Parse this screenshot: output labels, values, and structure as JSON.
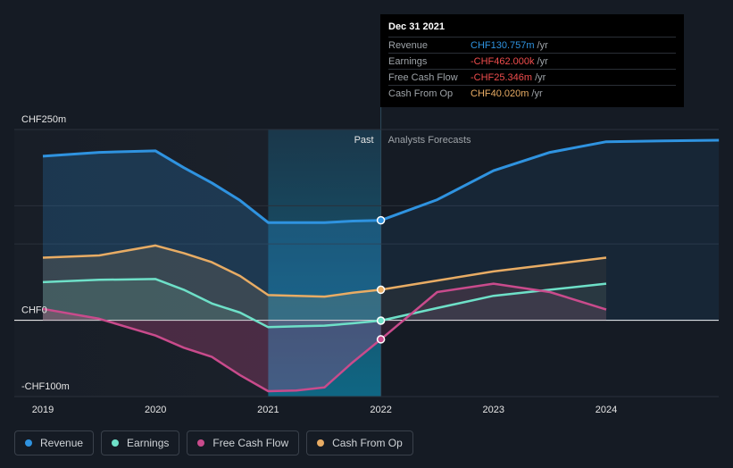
{
  "colors": {
    "background": "#151b24",
    "revenue": "#2f93e0",
    "earnings": "#6ee0c8",
    "free_cash_flow": "#c94b8c",
    "cash_from_op": "#e8ac64",
    "axis_text": "#e6e6e6",
    "section_text": "#9ea3a8"
  },
  "tooltip": {
    "date": "Dec 31 2021",
    "rows": [
      {
        "label": "Revenue",
        "value": "CHF130.757m",
        "unit": "/yr",
        "color": "#2f93e0"
      },
      {
        "label": "Earnings",
        "value": "-CHF462.000k",
        "unit": "/yr",
        "color": "#f04d4d"
      },
      {
        "label": "Free Cash Flow",
        "value": "-CHF25.346m",
        "unit": "/yr",
        "color": "#f04d4d"
      },
      {
        "label": "Cash From Op",
        "value": "CHF40.020m",
        "unit": "/yr",
        "color": "#e8ac64"
      }
    ]
  },
  "sections": {
    "past": "Past",
    "forecast": "Analysts Forecasts"
  },
  "legend": [
    {
      "label": "Revenue",
      "color": "#2f93e0"
    },
    {
      "label": "Earnings",
      "color": "#6ee0c8"
    },
    {
      "label": "Free Cash Flow",
      "color": "#c94b8c"
    },
    {
      "label": "Cash From Op",
      "color": "#e8ac64"
    }
  ],
  "chart_data": {
    "type": "line",
    "title": "",
    "xlabel": "",
    "ylabel": "",
    "unit": "CHF m",
    "xlim": [
      2019.0,
      2025.0
    ],
    "ylim": [
      -100,
      250
    ],
    "y_tick_labels": [
      {
        "value": 250,
        "label": "CHF250m"
      },
      {
        "value": 0,
        "label": "CHF0"
      },
      {
        "value": -100,
        "label": "-CHF100m"
      }
    ],
    "x_tick_labels": [
      {
        "value": 2019.0,
        "label": "2019"
      },
      {
        "value": 2020.0,
        "label": "2020"
      },
      {
        "value": 2021.0,
        "label": "2021"
      },
      {
        "value": 2022.0,
        "label": "2022"
      },
      {
        "value": 2023.0,
        "label": "2023"
      },
      {
        "value": 2024.0,
        "label": "2024"
      }
    ],
    "past_end": 2022.0,
    "highlight_start": 2021.0,
    "highlight_x": 2022.0,
    "series": [
      {
        "name": "Revenue",
        "key": "revenue",
        "past": [
          [
            2019.0,
            215
          ],
          [
            2019.5,
            220
          ],
          [
            2020.0,
            222
          ],
          [
            2020.25,
            200
          ],
          [
            2020.5,
            180
          ],
          [
            2020.75,
            157
          ],
          [
            2021.0,
            128
          ],
          [
            2021.25,
            128
          ],
          [
            2021.5,
            128
          ],
          [
            2021.75,
            130
          ],
          [
            2022.0,
            131
          ]
        ],
        "forecast": [
          [
            2022.0,
            131
          ],
          [
            2022.5,
            158
          ],
          [
            2023.0,
            196
          ],
          [
            2023.5,
            220
          ],
          [
            2024.0,
            234
          ],
          [
            2024.5,
            235
          ],
          [
            2025.0,
            236
          ]
        ]
      },
      {
        "name": "Earnings",
        "key": "earnings",
        "past": [
          [
            2019.0,
            50
          ],
          [
            2019.5,
            53
          ],
          [
            2020.0,
            54
          ],
          [
            2020.25,
            40
          ],
          [
            2020.5,
            22
          ],
          [
            2020.75,
            10
          ],
          [
            2021.0,
            -9
          ],
          [
            2021.25,
            -8
          ],
          [
            2021.5,
            -7
          ],
          [
            2021.75,
            -4
          ],
          [
            2022.0,
            -0.5
          ]
        ],
        "forecast": [
          [
            2022.0,
            -0.5
          ],
          [
            2022.5,
            16
          ],
          [
            2023.0,
            32
          ],
          [
            2023.5,
            40
          ],
          [
            2024.0,
            48
          ]
        ]
      },
      {
        "name": "Free Cash Flow",
        "key": "free_cash_flow",
        "past": [
          [
            2019.0,
            15
          ],
          [
            2019.5,
            2
          ],
          [
            2020.0,
            -20
          ],
          [
            2020.25,
            -36
          ],
          [
            2020.5,
            -48
          ],
          [
            2020.75,
            -72
          ],
          [
            2021.0,
            -93
          ],
          [
            2021.25,
            -92
          ],
          [
            2021.5,
            -88
          ],
          [
            2021.75,
            -55
          ],
          [
            2022.0,
            -25
          ]
        ],
        "forecast": [
          [
            2022.0,
            -25
          ],
          [
            2022.5,
            37
          ],
          [
            2023.0,
            48
          ],
          [
            2023.5,
            37
          ],
          [
            2024.0,
            14
          ]
        ]
      },
      {
        "name": "Cash From Op",
        "key": "cash_from_op",
        "past": [
          [
            2019.0,
            82
          ],
          [
            2019.5,
            85
          ],
          [
            2020.0,
            98
          ],
          [
            2020.25,
            88
          ],
          [
            2020.5,
            76
          ],
          [
            2020.75,
            58
          ],
          [
            2021.0,
            33
          ],
          [
            2021.25,
            32
          ],
          [
            2021.5,
            31
          ],
          [
            2021.75,
            36
          ],
          [
            2022.0,
            40
          ]
        ],
        "forecast": [
          [
            2022.0,
            40
          ],
          [
            2022.5,
            52
          ],
          [
            2023.0,
            64
          ],
          [
            2023.5,
            73
          ],
          [
            2024.0,
            82
          ]
        ]
      }
    ]
  }
}
